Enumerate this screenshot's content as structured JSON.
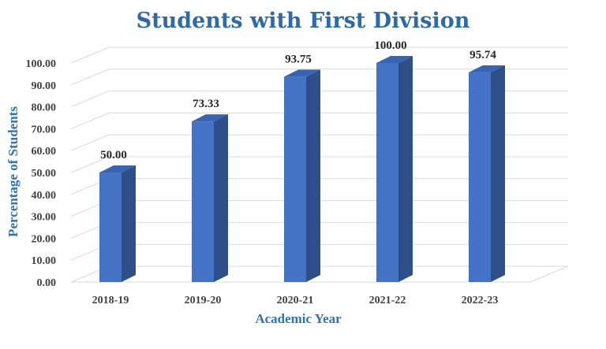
{
  "chart_data": {
    "type": "bar",
    "title": "Students with First Division",
    "xlabel": "Academic Year",
    "ylabel": "Percentage of Students",
    "categories": [
      "2018-19",
      "2019-20",
      "2020-21",
      "2021-22",
      "2022-23"
    ],
    "values": [
      50.0,
      73.33,
      93.75,
      100.0,
      95.74
    ],
    "data_labels": [
      "50.00",
      "73.33",
      "93.75",
      "100.00",
      "95.74"
    ],
    "ylim": [
      0,
      100
    ],
    "yticks": [
      0,
      10,
      20,
      30,
      40,
      50,
      60,
      70,
      80,
      90,
      100
    ],
    "ytick_labels": [
      "0.00",
      "10.00",
      "20.00",
      "30.00",
      "40.00",
      "50.00",
      "60.00",
      "70.00",
      "80.00",
      "90.00",
      "100.00"
    ],
    "grid": true,
    "legend": "none",
    "style": "3d-column",
    "colors": {
      "front": "#4472c4",
      "side": "#2f4f8a",
      "top": "#3a63b0",
      "grid": "#d9d9d9",
      "title": "#2e6aa6",
      "axis_title": "#2e74b5"
    }
  }
}
